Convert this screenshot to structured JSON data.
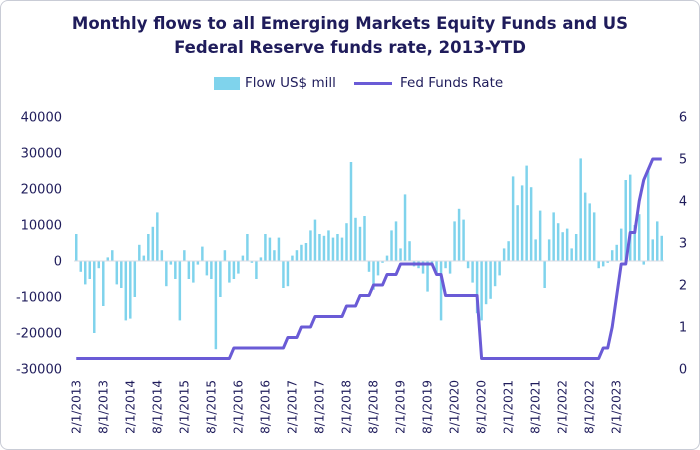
{
  "title_line1": "Monthly flows to all Emerging Markets Equity Funds and US",
  "title_line2": "Federal Reserve funds rate, 2013-YTD",
  "chart_data": {
    "type": "bar+line",
    "title": "Monthly flows to all Emerging Markets Equity Funds and US Federal Reserve funds rate, 2013-YTD",
    "x_tick_labels": [
      "2/1/2013",
      "8/1/2013",
      "2/1/2014",
      "8/1/2014",
      "2/1/2015",
      "8/1/2015",
      "2/1/2016",
      "8/1/2016",
      "2/1/2017",
      "8/1/2017",
      "2/1/2018",
      "8/1/2018",
      "2/1/2019",
      "8/1/2019",
      "2/1/2020",
      "8/1/2020",
      "2/1/2021",
      "8/1/2021",
      "2/1/2022",
      "8/1/2022",
      "2/1/2023"
    ],
    "y_left": {
      "ylim": [
        -30000,
        40000
      ],
      "ticks": [
        "-30000",
        "-20000",
        "-10000",
        "0",
        "10000",
        "20000",
        "30000",
        "40000"
      ]
    },
    "y_right": {
      "ylim": [
        0,
        6
      ],
      "ticks": [
        "0",
        "1",
        "2",
        "3",
        "4",
        "5",
        "6"
      ]
    },
    "legend": {
      "position": "top",
      "entries": [
        "Flow US$ mill",
        "Fed Funds Rate"
      ]
    },
    "colors": {
      "bars": "#7fd3ec",
      "line": "#6a5bd6",
      "text": "#1f1c5b"
    },
    "series": [
      {
        "name": "Flow US$ mill",
        "type": "bar",
        "axis": "left",
        "values": [
          7500,
          -3000,
          -6500,
          -5000,
          -20000,
          -2000,
          -12500,
          1000,
          3000,
          -6500,
          -7500,
          -16500,
          -16000,
          -10000,
          4500,
          1500,
          7500,
          9500,
          13500,
          3000,
          -7000,
          -1000,
          -5000,
          -16500,
          3000,
          -5000,
          -6000,
          -1000,
          4000,
          -4000,
          -5000,
          -24500,
          -10000,
          3000,
          -6000,
          -5000,
          -3500,
          1500,
          7500,
          -500,
          -5000,
          1000,
          7500,
          6500,
          3000,
          6500,
          -7500,
          -7000,
          1500,
          3000,
          4500,
          5000,
          8500,
          11500,
          7500,
          7000,
          8500,
          6500,
          7500,
          6500,
          10500,
          27500,
          12000,
          9500,
          12500,
          -3000,
          -8000,
          -4000,
          -500,
          1500,
          8500,
          11000,
          3500,
          18500,
          5500,
          -1500,
          -2000,
          -3500,
          -8500,
          -1000,
          -3500,
          -16500,
          -2000,
          -3500,
          11000,
          14500,
          11500,
          -2000,
          -6000,
          -14500,
          -16500,
          -12000,
          -10500,
          -7000,
          -4000,
          3500,
          5500,
          23500,
          15500,
          21000,
          26500,
          20500,
          6000,
          14000,
          -7500,
          6000,
          13500,
          10500,
          8000,
          9000,
          3500,
          7500,
          28500,
          19000,
          16000,
          13500,
          -2000,
          -1500,
          -500,
          3000,
          4500,
          9000,
          22500,
          24000,
          10000,
          13000,
          -1000,
          25000,
          6000,
          11000,
          7000
        ]
      },
      {
        "name": "Fed Funds Rate",
        "type": "line",
        "axis": "right",
        "values": [
          0.25,
          0.25,
          0.25,
          0.25,
          0.25,
          0.25,
          0.25,
          0.25,
          0.25,
          0.25,
          0.25,
          0.25,
          0.25,
          0.25,
          0.25,
          0.25,
          0.25,
          0.25,
          0.25,
          0.25,
          0.25,
          0.25,
          0.25,
          0.25,
          0.25,
          0.25,
          0.25,
          0.25,
          0.25,
          0.25,
          0.25,
          0.25,
          0.25,
          0.25,
          0.25,
          0.5,
          0.5,
          0.5,
          0.5,
          0.5,
          0.5,
          0.5,
          0.5,
          0.5,
          0.5,
          0.5,
          0.5,
          0.75,
          0.75,
          0.75,
          1,
          1,
          1,
          1.25,
          1.25,
          1.25,
          1.25,
          1.25,
          1.25,
          1.25,
          1.5,
          1.5,
          1.5,
          1.75,
          1.75,
          1.75,
          2,
          2,
          2,
          2.25,
          2.25,
          2.25,
          2.5,
          2.5,
          2.5,
          2.5,
          2.5,
          2.5,
          2.5,
          2.5,
          2.25,
          2.25,
          1.75,
          1.75,
          1.75,
          1.75,
          1.75,
          1.75,
          1.75,
          1.75,
          0.25,
          0.25,
          0.25,
          0.25,
          0.25,
          0.25,
          0.25,
          0.25,
          0.25,
          0.25,
          0.25,
          0.25,
          0.25,
          0.25,
          0.25,
          0.25,
          0.25,
          0.25,
          0.25,
          0.25,
          0.25,
          0.25,
          0.25,
          0.25,
          0.25,
          0.25,
          0.25,
          0.5,
          0.5,
          1,
          1.75,
          2.5,
          2.5,
          3.25,
          3.25,
          4,
          4.5,
          4.75,
          5,
          5,
          5
        ]
      }
    ]
  }
}
